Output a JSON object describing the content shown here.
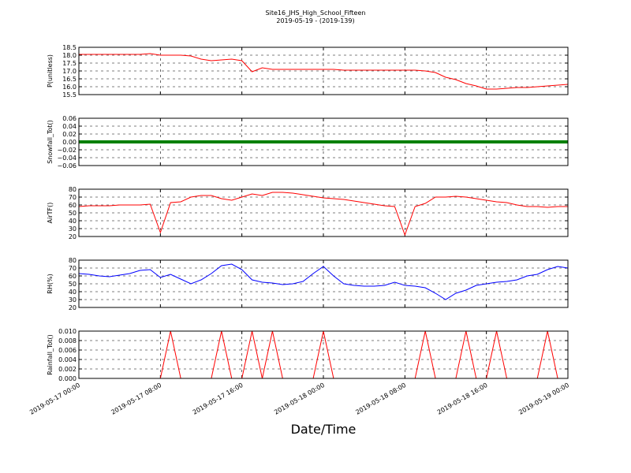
{
  "chart_data": [
    {
      "type": "line",
      "title": "Site16_JHS_High_School_Fifteen",
      "subtitle": "2019-05-19 - (2019-139)",
      "ylabel": "P(unitless)",
      "x": [
        "2019-05-17 00:00",
        "2019-05-17 01:00",
        "2019-05-17 02:00",
        "2019-05-17 03:00",
        "2019-05-17 04:00",
        "2019-05-17 05:00",
        "2019-05-17 06:00",
        "2019-05-17 07:00",
        "2019-05-17 08:00",
        "2019-05-17 09:00",
        "2019-05-17 10:00",
        "2019-05-17 11:00",
        "2019-05-17 12:00",
        "2019-05-17 13:00",
        "2019-05-17 14:00",
        "2019-05-17 15:00",
        "2019-05-17 16:00",
        "2019-05-17 17:00",
        "2019-05-17 18:00",
        "2019-05-17 19:00",
        "2019-05-17 20:00",
        "2019-05-17 21:00",
        "2019-05-17 22:00",
        "2019-05-17 23:00",
        "2019-05-18 00:00",
        "2019-05-18 01:00",
        "2019-05-18 02:00",
        "2019-05-18 03:00",
        "2019-05-18 04:00",
        "2019-05-18 05:00",
        "2019-05-18 06:00",
        "2019-05-18 07:00",
        "2019-05-18 08:00",
        "2019-05-18 09:00",
        "2019-05-18 10:00",
        "2019-05-18 11:00",
        "2019-05-18 12:00",
        "2019-05-18 13:00",
        "2019-05-18 14:00",
        "2019-05-18 15:00",
        "2019-05-18 16:00",
        "2019-05-18 17:00",
        "2019-05-18 18:00",
        "2019-05-18 19:00",
        "2019-05-18 20:00",
        "2019-05-18 21:00",
        "2019-05-18 22:00",
        "2019-05-18 23:00",
        "2019-05-19 00:00"
      ],
      "series": [
        {
          "color": "#ff0000",
          "values": [
            18.05,
            18.05,
            18.05,
            18.05,
            18.05,
            18.05,
            18.05,
            18.1,
            18.0,
            18.0,
            18.0,
            17.95,
            17.75,
            17.65,
            17.7,
            17.75,
            17.65,
            16.95,
            17.2,
            17.1,
            17.1,
            17.1,
            17.1,
            17.1,
            17.1,
            17.1,
            17.05,
            17.05,
            17.05,
            17.05,
            17.05,
            17.05,
            17.05,
            17.05,
            17.0,
            16.9,
            16.6,
            16.45,
            16.2,
            16.05,
            15.85,
            15.85,
            15.9,
            15.95,
            15.95,
            16.0,
            16.05,
            16.1,
            16.15
          ]
        }
      ],
      "ylim": [
        15.5,
        18.5
      ],
      "yticks": [
        15.5,
        {
          "value": 16,
          "label": "16.0"
        },
        16.5,
        {
          "value": 17,
          "label": "17.0"
        },
        17.5,
        {
          "value": 18,
          "label": "18.0"
        },
        18.5
      ],
      "grid": true
    },
    {
      "type": "line",
      "ylabel": "Snowfall_Tot()",
      "x": [
        "2019-05-17 00:00",
        "2019-05-17 01:00",
        "2019-05-17 02:00",
        "2019-05-17 03:00",
        "2019-05-17 04:00",
        "2019-05-17 05:00",
        "2019-05-17 06:00",
        "2019-05-17 07:00",
        "2019-05-17 08:00",
        "2019-05-17 09:00",
        "2019-05-17 10:00",
        "2019-05-17 11:00",
        "2019-05-17 12:00",
        "2019-05-17 13:00",
        "2019-05-17 14:00",
        "2019-05-17 15:00",
        "2019-05-17 16:00",
        "2019-05-17 17:00",
        "2019-05-17 18:00",
        "2019-05-17 19:00",
        "2019-05-17 20:00",
        "2019-05-17 21:00",
        "2019-05-17 22:00",
        "2019-05-17 23:00",
        "2019-05-18 00:00",
        "2019-05-18 01:00",
        "2019-05-18 02:00",
        "2019-05-18 03:00",
        "2019-05-18 04:00",
        "2019-05-18 05:00",
        "2019-05-18 06:00",
        "2019-05-18 07:00",
        "2019-05-18 08:00",
        "2019-05-18 09:00",
        "2019-05-18 10:00",
        "2019-05-18 11:00",
        "2019-05-18 12:00",
        "2019-05-18 13:00",
        "2019-05-18 14:00",
        "2019-05-18 15:00",
        "2019-05-18 16:00",
        "2019-05-18 17:00",
        "2019-05-18 18:00",
        "2019-05-18 19:00",
        "2019-05-18 20:00",
        "2019-05-18 21:00",
        "2019-05-18 22:00",
        "2019-05-18 23:00",
        "2019-05-19 00:00"
      ],
      "series": [
        {
          "color": "#008000",
          "values": [
            0,
            0,
            0,
            0,
            0,
            0,
            0,
            0,
            0,
            0,
            0,
            0,
            0,
            0,
            0,
            0,
            0,
            0,
            0,
            0,
            0,
            0,
            0,
            0,
            0,
            0,
            0,
            0,
            0,
            0,
            0,
            0,
            0,
            0,
            0,
            0,
            0,
            0,
            0,
            0,
            0,
            0,
            0,
            0,
            0,
            0,
            0,
            0,
            0
          ]
        }
      ],
      "ylim": [
        -0.06,
        0.06
      ],
      "yticks": [
        {
          "value": -0.06,
          "label": "−0.06"
        },
        {
          "value": -0.04,
          "label": "−0.04"
        },
        {
          "value": -0.02,
          "label": "−0.02"
        },
        {
          "value": 0,
          "label": "0.00"
        },
        0.02,
        0.04,
        0.06
      ],
      "grid": true
    },
    {
      "type": "line",
      "ylabel": "AirTF()",
      "x": [
        "2019-05-17 00:00",
        "2019-05-17 01:00",
        "2019-05-17 02:00",
        "2019-05-17 03:00",
        "2019-05-17 04:00",
        "2019-05-17 05:00",
        "2019-05-17 06:00",
        "2019-05-17 07:00",
        "2019-05-17 08:00",
        "2019-05-17 09:00",
        "2019-05-17 10:00",
        "2019-05-17 11:00",
        "2019-05-17 12:00",
        "2019-05-17 13:00",
        "2019-05-17 14:00",
        "2019-05-17 15:00",
        "2019-05-17 16:00",
        "2019-05-17 17:00",
        "2019-05-17 18:00",
        "2019-05-17 19:00",
        "2019-05-17 20:00",
        "2019-05-17 21:00",
        "2019-05-17 22:00",
        "2019-05-17 23:00",
        "2019-05-18 00:00",
        "2019-05-18 01:00",
        "2019-05-18 02:00",
        "2019-05-18 03:00",
        "2019-05-18 04:00",
        "2019-05-18 05:00",
        "2019-05-18 06:00",
        "2019-05-18 07:00",
        "2019-05-18 08:00",
        "2019-05-18 09:00",
        "2019-05-18 10:00",
        "2019-05-18 11:00",
        "2019-05-18 12:00",
        "2019-05-18 13:00",
        "2019-05-18 14:00",
        "2019-05-18 15:00",
        "2019-05-18 16:00",
        "2019-05-18 17:00",
        "2019-05-18 18:00",
        "2019-05-18 19:00",
        "2019-05-18 20:00",
        "2019-05-18 21:00",
        "2019-05-18 22:00",
        "2019-05-18 23:00",
        "2019-05-19 00:00"
      ],
      "series": [
        {
          "color": "#ff0000",
          "values": [
            58,
            59,
            59,
            59,
            60,
            60,
            60,
            61,
            25,
            63,
            64,
            70,
            72,
            72,
            68,
            66,
            70,
            74,
            72,
            76,
            76,
            75,
            73,
            71,
            69,
            68,
            67,
            65,
            63,
            61,
            59,
            58,
            22,
            58,
            62,
            70,
            70,
            71,
            70,
            68,
            66,
            64,
            63,
            60,
            58,
            58,
            57,
            58,
            58
          ]
        }
      ],
      "ylim": [
        20,
        80
      ],
      "yticks": [
        20,
        30,
        40,
        50,
        60,
        70,
        80
      ],
      "grid": true
    },
    {
      "type": "line",
      "ylabel": "RH(%)",
      "x": [
        "2019-05-17 00:00",
        "2019-05-17 01:00",
        "2019-05-17 02:00",
        "2019-05-17 03:00",
        "2019-05-17 04:00",
        "2019-05-17 05:00",
        "2019-05-17 06:00",
        "2019-05-17 07:00",
        "2019-05-17 08:00",
        "2019-05-17 09:00",
        "2019-05-17 10:00",
        "2019-05-17 11:00",
        "2019-05-17 12:00",
        "2019-05-17 13:00",
        "2019-05-17 14:00",
        "2019-05-17 15:00",
        "2019-05-17 16:00",
        "2019-05-17 17:00",
        "2019-05-17 18:00",
        "2019-05-17 19:00",
        "2019-05-17 20:00",
        "2019-05-17 21:00",
        "2019-05-17 22:00",
        "2019-05-17 23:00",
        "2019-05-18 00:00",
        "2019-05-18 01:00",
        "2019-05-18 02:00",
        "2019-05-18 03:00",
        "2019-05-18 04:00",
        "2019-05-18 05:00",
        "2019-05-18 06:00",
        "2019-05-18 07:00",
        "2019-05-18 08:00",
        "2019-05-18 09:00",
        "2019-05-18 10:00",
        "2019-05-18 11:00",
        "2019-05-18 12:00",
        "2019-05-18 13:00",
        "2019-05-18 14:00",
        "2019-05-18 15:00",
        "2019-05-18 16:00",
        "2019-05-18 17:00",
        "2019-05-18 18:00",
        "2019-05-18 19:00",
        "2019-05-18 20:00",
        "2019-05-18 21:00",
        "2019-05-18 22:00",
        "2019-05-18 23:00",
        "2019-05-19 00:00"
      ],
      "series": [
        {
          "color": "#0000ff",
          "values": [
            63,
            62,
            60,
            59,
            61,
            63,
            67,
            68,
            58,
            62,
            56,
            50,
            55,
            63,
            73,
            75,
            68,
            55,
            52,
            51,
            49,
            50,
            53,
            63,
            72,
            60,
            50,
            48,
            47,
            47,
            48,
            52,
            48,
            47,
            45,
            38,
            30,
            38,
            42,
            48,
            50,
            52,
            53,
            55,
            60,
            62,
            68,
            72,
            70
          ]
        }
      ],
      "ylim": [
        20,
        80
      ],
      "yticks": [
        20,
        30,
        40,
        50,
        60,
        70,
        80
      ],
      "grid": true
    },
    {
      "type": "line",
      "ylabel": "Rainfall_Tot()",
      "xlabel": "Date/Time",
      "x": [
        "2019-05-17 00:00",
        "2019-05-17 01:00",
        "2019-05-17 02:00",
        "2019-05-17 03:00",
        "2019-05-17 04:00",
        "2019-05-17 05:00",
        "2019-05-17 06:00",
        "2019-05-17 07:00",
        "2019-05-17 08:00",
        "2019-05-17 09:00",
        "2019-05-17 10:00",
        "2019-05-17 11:00",
        "2019-05-17 12:00",
        "2019-05-17 13:00",
        "2019-05-17 14:00",
        "2019-05-17 15:00",
        "2019-05-17 16:00",
        "2019-05-17 17:00",
        "2019-05-17 18:00",
        "2019-05-17 19:00",
        "2019-05-17 20:00",
        "2019-05-17 21:00",
        "2019-05-17 22:00",
        "2019-05-17 23:00",
        "2019-05-18 00:00",
        "2019-05-18 01:00",
        "2019-05-18 02:00",
        "2019-05-18 03:00",
        "2019-05-18 04:00",
        "2019-05-18 05:00",
        "2019-05-18 06:00",
        "2019-05-18 07:00",
        "2019-05-18 08:00",
        "2019-05-18 09:00",
        "2019-05-18 10:00",
        "2019-05-18 11:00",
        "2019-05-18 12:00",
        "2019-05-18 13:00",
        "2019-05-18 14:00",
        "2019-05-18 15:00",
        "2019-05-18 16:00",
        "2019-05-18 17:00",
        "2019-05-18 18:00",
        "2019-05-18 19:00",
        "2019-05-18 20:00",
        "2019-05-18 21:00",
        "2019-05-18 22:00",
        "2019-05-18 23:00",
        "2019-05-19 00:00"
      ],
      "series": [
        {
          "color": "#ff0000",
          "values": [
            0,
            0,
            0,
            0,
            0,
            0,
            0,
            0,
            0,
            0.01,
            0,
            0,
            0,
            0,
            0.01,
            0,
            0,
            0.01,
            0,
            0.01,
            0,
            0,
            0,
            0,
            0.01,
            0,
            0,
            0,
            0,
            0,
            0,
            0,
            0,
            0,
            0.01,
            0,
            0,
            0,
            0.01,
            0,
            0,
            0.01,
            0,
            0,
            0,
            0,
            0.01,
            0,
            0
          ]
        }
      ],
      "ylim": [
        0,
        0.01
      ],
      "yticks": [
        {
          "value": 0,
          "label": "0.000"
        },
        {
          "value": 0.002,
          "label": "0.002"
        },
        {
          "value": 0.004,
          "label": "0.004"
        },
        {
          "value": 0.006,
          "label": "0.006"
        },
        {
          "value": 0.008,
          "label": "0.008"
        },
        {
          "value": 0.01,
          "label": "0.010"
        }
      ],
      "grid": true,
      "xlim": [
        "2019-05-17 00:00",
        "2019-05-19 00:00"
      ],
      "xticks": [
        "2019-05-17 00:00",
        "2019-05-17 08:00",
        "2019-05-17 16:00",
        "2019-05-18 00:00",
        "2019-05-18 08:00",
        "2019-05-18 16:00",
        "2019-05-19 00:00"
      ]
    }
  ]
}
